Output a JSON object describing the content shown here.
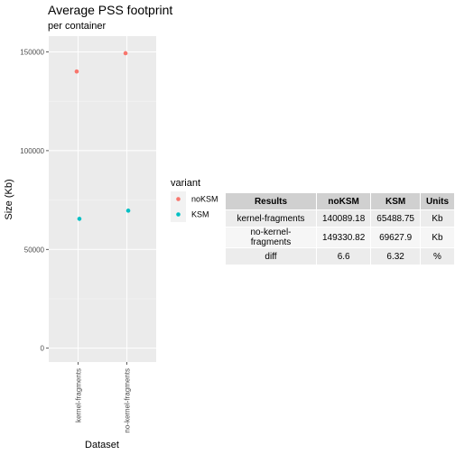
{
  "chart_data": {
    "type": "scatter",
    "title": "Average PSS footprint",
    "subtitle": "per container",
    "xlabel": "Dataset",
    "ylabel": "Size (Kb)",
    "categories": [
      "kernel-fragments",
      "no-kernel-fragments"
    ],
    "ylim": [
      -7000,
      158000
    ],
    "yticks": [
      0,
      50000,
      100000,
      150000
    ],
    "grid": true,
    "legend_title": "variant",
    "legend_position": "right",
    "series": [
      {
        "name": "noKSM",
        "color": "#F8766D",
        "values": [
          140089.18,
          149330.82
        ]
      },
      {
        "name": "KSM",
        "color": "#00BFC4",
        "values": [
          65488.75,
          69627.9
        ]
      }
    ]
  },
  "table": {
    "headers": [
      "Results",
      "noKSM",
      "KSM",
      "Units"
    ],
    "rows": [
      [
        "kernel-fragments",
        "140089.18",
        "65488.75",
        "Kb"
      ],
      [
        "no-kernel-fragments",
        "149330.82",
        "69627.9",
        "Kb"
      ],
      [
        "diff",
        "6.6",
        "6.32",
        "%"
      ]
    ]
  }
}
